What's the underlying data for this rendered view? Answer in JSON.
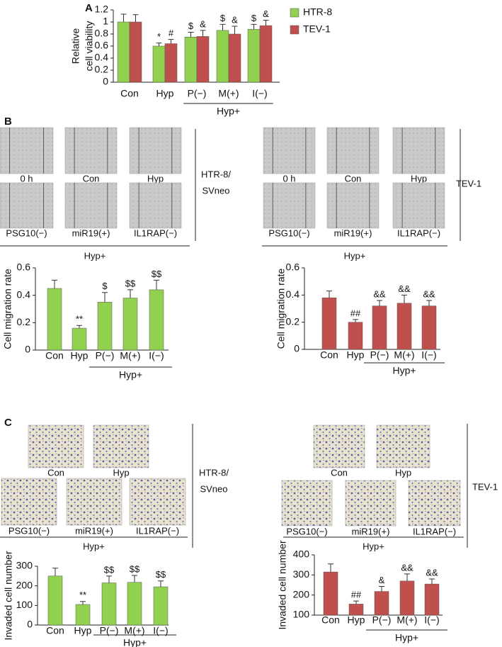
{
  "panel_letters": [
    "A",
    "B",
    "C"
  ],
  "image_sets": [
    {
      "top_labels": [
        "0 h",
        "Con",
        "Hyp"
      ],
      "bottom_labels": [
        "PSG10(−)",
        "miR19(+)",
        "IL1RAP(−)"
      ],
      "group_label": "Hyp+",
      "cell_line": [
        "HTR-8/",
        "SVneo"
      ]
    },
    {
      "top_labels": [
        "0 h",
        "Con",
        "Hyp"
      ],
      "bottom_labels": [
        "PSG10(−)",
        "miR19(+)",
        "IL1RAP(−)"
      ],
      "group_label": "Hyp+",
      "cell_line": [
        "TEV-1"
      ]
    },
    {
      "top_labels": [
        "Con",
        "Hyp"
      ],
      "bottom_labels": [
        "PSG10(−)",
        "miR19(+)",
        "IL1RAP(−)"
      ],
      "group_label": "Hyp+",
      "cell_line": [
        "HTR-8/",
        "SVneo"
      ]
    },
    {
      "top_labels": [
        "Con",
        "Hyp"
      ],
      "bottom_labels": [
        "PSG10(−)",
        "miR19(+)",
        "IL1RAP(−)"
      ],
      "group_label": "Hyp+",
      "cell_line": [
        "TEV-1"
      ]
    }
  ],
  "chart_data": [
    {
      "type": "bar",
      "ylabel": [
        "Relative",
        "cell viability"
      ],
      "categories": [
        "Con",
        "Hyp",
        "P(−)",
        "M(+)",
        "I(−)"
      ],
      "group": {
        "label": "Hyp+",
        "from": "P(−)",
        "to": "I(−)"
      },
      "ylim": [
        0,
        1.2
      ],
      "yticks": [
        0,
        0.2,
        0.4,
        0.6,
        0.8,
        1,
        1.2
      ],
      "legend": "right",
      "series": [
        {
          "name": "HTR-8",
          "color": "#92d050",
          "values": [
            1.0,
            0.6,
            0.75,
            0.86,
            0.88
          ],
          "errors": [
            0.13,
            0.05,
            0.08,
            0.1,
            0.08
          ],
          "significance": [
            null,
            "*",
            "$",
            "$",
            "$"
          ]
        },
        {
          "name": "TEV-1",
          "color": "#c0504d",
          "values": [
            1.0,
            0.64,
            0.76,
            0.8,
            0.94
          ],
          "errors": [
            0.12,
            0.07,
            0.1,
            0.13,
            0.09
          ],
          "significance": [
            null,
            "#",
            "&",
            "&",
            "&"
          ]
        }
      ]
    },
    {
      "type": "bar",
      "ylabel": [
        "Cell migration rate"
      ],
      "categories": [
        "Con",
        "Hyp",
        "P(−)",
        "M(+)",
        "I(−)"
      ],
      "group": {
        "label": "Hyp+",
        "from": "P(−)",
        "to": "I(−)"
      },
      "ylim": [
        0,
        0.6
      ],
      "yticks": [
        0,
        0.2,
        0.4,
        0.6
      ],
      "series": [
        {
          "color": "#92d050",
          "values": [
            0.45,
            0.16,
            0.35,
            0.38,
            0.44
          ],
          "errors": [
            0.06,
            0.02,
            0.07,
            0.06,
            0.07
          ],
          "significance": [
            null,
            "**",
            "$",
            "$$",
            "$$"
          ]
        }
      ]
    },
    {
      "type": "bar",
      "ylabel": [
        "Cell migration rate"
      ],
      "categories": [
        "Con",
        "Hyp",
        "P(−)",
        "M(+)",
        "I(−)"
      ],
      "group": {
        "label": "Hyp+",
        "from": "P(−)",
        "to": "I(−)"
      },
      "ylim": [
        0,
        0.6
      ],
      "yticks": [
        0,
        0.2,
        0.4,
        0.6
      ],
      "series": [
        {
          "color": "#c0504d",
          "values": [
            0.38,
            0.2,
            0.32,
            0.34,
            0.32
          ],
          "errors": [
            0.05,
            0.02,
            0.04,
            0.06,
            0.04
          ],
          "significance": [
            null,
            "##",
            "&&",
            "&&",
            "&&"
          ]
        }
      ]
    },
    {
      "type": "bar",
      "ylabel": [
        "Invaded cell number"
      ],
      "categories": [
        "Con",
        "Hyp",
        "P(−)",
        "M(+)",
        "I(−)"
      ],
      "group": {
        "label": "Hyp+",
        "from": "P(−)",
        "to": "I(−)"
      },
      "ylim": [
        0,
        300
      ],
      "yticks": [
        0,
        100,
        200,
        300
      ],
      "series": [
        {
          "color": "#92d050",
          "values": [
            250,
            105,
            215,
            218,
            195
          ],
          "errors": [
            40,
            15,
            35,
            35,
            30
          ],
          "significance": [
            null,
            "**",
            "$$",
            "$$",
            "$$"
          ]
        }
      ]
    },
    {
      "type": "bar",
      "ylabel": [
        "Invaded cell number"
      ],
      "categories": [
        "Con",
        "Hyp",
        "P(−)",
        "M(+)",
        "I(−)"
      ],
      "group": {
        "label": "Hyp+",
        "from": "P(−)",
        "to": "I(−)"
      },
      "ylim": [
        100,
        400
      ],
      "yticks": [
        100,
        200,
        300,
        400
      ],
      "series": [
        {
          "color": "#c0504d",
          "values": [
            315,
            155,
            218,
            270,
            255
          ],
          "errors": [
            40,
            15,
            25,
            35,
            25
          ],
          "significance": [
            null,
            "##",
            "&",
            "&&",
            "&&"
          ]
        }
      ]
    }
  ]
}
